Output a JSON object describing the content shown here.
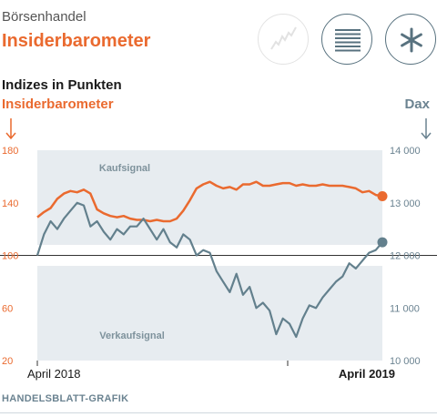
{
  "header": {
    "kicker": "Börsenhandel",
    "title": "Insiderbarometer"
  },
  "toolbar": {
    "buttons": [
      {
        "name": "line-chart-icon",
        "enabled": false
      },
      {
        "name": "list-icon",
        "enabled": true
      },
      {
        "name": "asterisk-icon",
        "enabled": true
      }
    ]
  },
  "labels": {
    "units": "Indizes in Punkten",
    "left_series": "Insiderbarometer",
    "right_series": "Dax",
    "buy_zone": "Kaufsignal",
    "sell_zone": "Verkaufsignal",
    "x_start": "April 2018",
    "x_end": "April 2019",
    "source": "HANDELSBLATT-GRAFIK"
  },
  "colors": {
    "insider": "#ea6a2f",
    "dax": "#63808d",
    "zone": "#e7ecf0",
    "axis_left": "#ea6a2f",
    "axis_right": "#6b8391"
  },
  "chart_data": {
    "type": "line",
    "x_unit": "weeks since April 2018",
    "x_range": [
      0,
      52
    ],
    "x_labels": [
      {
        "at": 0,
        "text": "April 2018"
      },
      {
        "at": 52,
        "text": "April 2019"
      }
    ],
    "left_axis": {
      "title": "Insiderbarometer",
      "ylim": [
        20,
        180
      ],
      "ticks": [
        20,
        60,
        100,
        140,
        180
      ]
    },
    "right_axis": {
      "title": "Dax",
      "ylim": [
        10000,
        14000
      ],
      "ticks": [
        "10 000",
        "11 000",
        "12 000",
        "13 000",
        "14 000"
      ],
      "tick_values": [
        10000,
        11000,
        12000,
        13000,
        14000
      ]
    },
    "reference_line": 100,
    "zones": [
      {
        "name": "Kaufsignal",
        "from": 108,
        "to": 180
      },
      {
        "name": "Verkaufsignal",
        "from": 20,
        "to": 92
      }
    ],
    "series": [
      {
        "name": "Insiderbarometer",
        "axis": "left",
        "x": [
          0,
          1,
          2,
          3,
          4,
          5,
          6,
          7,
          8,
          9,
          10,
          11,
          12,
          13,
          14,
          15,
          16,
          17,
          18,
          19,
          20,
          21,
          22,
          23,
          24,
          25,
          26,
          27,
          28,
          29,
          30,
          31,
          32,
          33,
          34,
          35,
          36,
          37,
          38,
          39,
          40,
          41,
          42,
          43,
          44,
          45,
          46,
          47,
          48,
          49,
          50,
          51,
          52
        ],
        "values": [
          129,
          133,
          136,
          143,
          147,
          149,
          148,
          150,
          147,
          135,
          132,
          130,
          129,
          130,
          128,
          127,
          127,
          126,
          127,
          126,
          126,
          128,
          134,
          142,
          151,
          154,
          156,
          153,
          151,
          152,
          150,
          154,
          154,
          156,
          153,
          153,
          154,
          155,
          155,
          153,
          154,
          153,
          153,
          154,
          153,
          153,
          153,
          152,
          151,
          148,
          149,
          146,
          145
        ]
      },
      {
        "name": "Dax",
        "axis": "right",
        "x": [
          0,
          1,
          2,
          3,
          4,
          5,
          6,
          7,
          8,
          9,
          10,
          11,
          12,
          13,
          14,
          15,
          16,
          17,
          18,
          19,
          20,
          21,
          22,
          23,
          24,
          25,
          26,
          27,
          28,
          29,
          30,
          31,
          32,
          33,
          34,
          35,
          36,
          37,
          38,
          39,
          40,
          41,
          42,
          43,
          44,
          45,
          46,
          47,
          48,
          49,
          50,
          51,
          52
        ],
        "values": [
          12000,
          12400,
          12650,
          12500,
          12700,
          12850,
          13000,
          12950,
          12550,
          12650,
          12450,
          12300,
          12500,
          12400,
          12550,
          12550,
          12700,
          12500,
          12300,
          12500,
          12250,
          12150,
          12400,
          12300,
          12000,
          12100,
          12050,
          11700,
          11500,
          11300,
          11650,
          11250,
          11400,
          11000,
          11100,
          10950,
          10500,
          10800,
          10700,
          10450,
          10800,
          11050,
          11000,
          11200,
          11350,
          11500,
          11600,
          11850,
          11750,
          11900,
          12050,
          12100,
          12250
        ]
      }
    ]
  }
}
